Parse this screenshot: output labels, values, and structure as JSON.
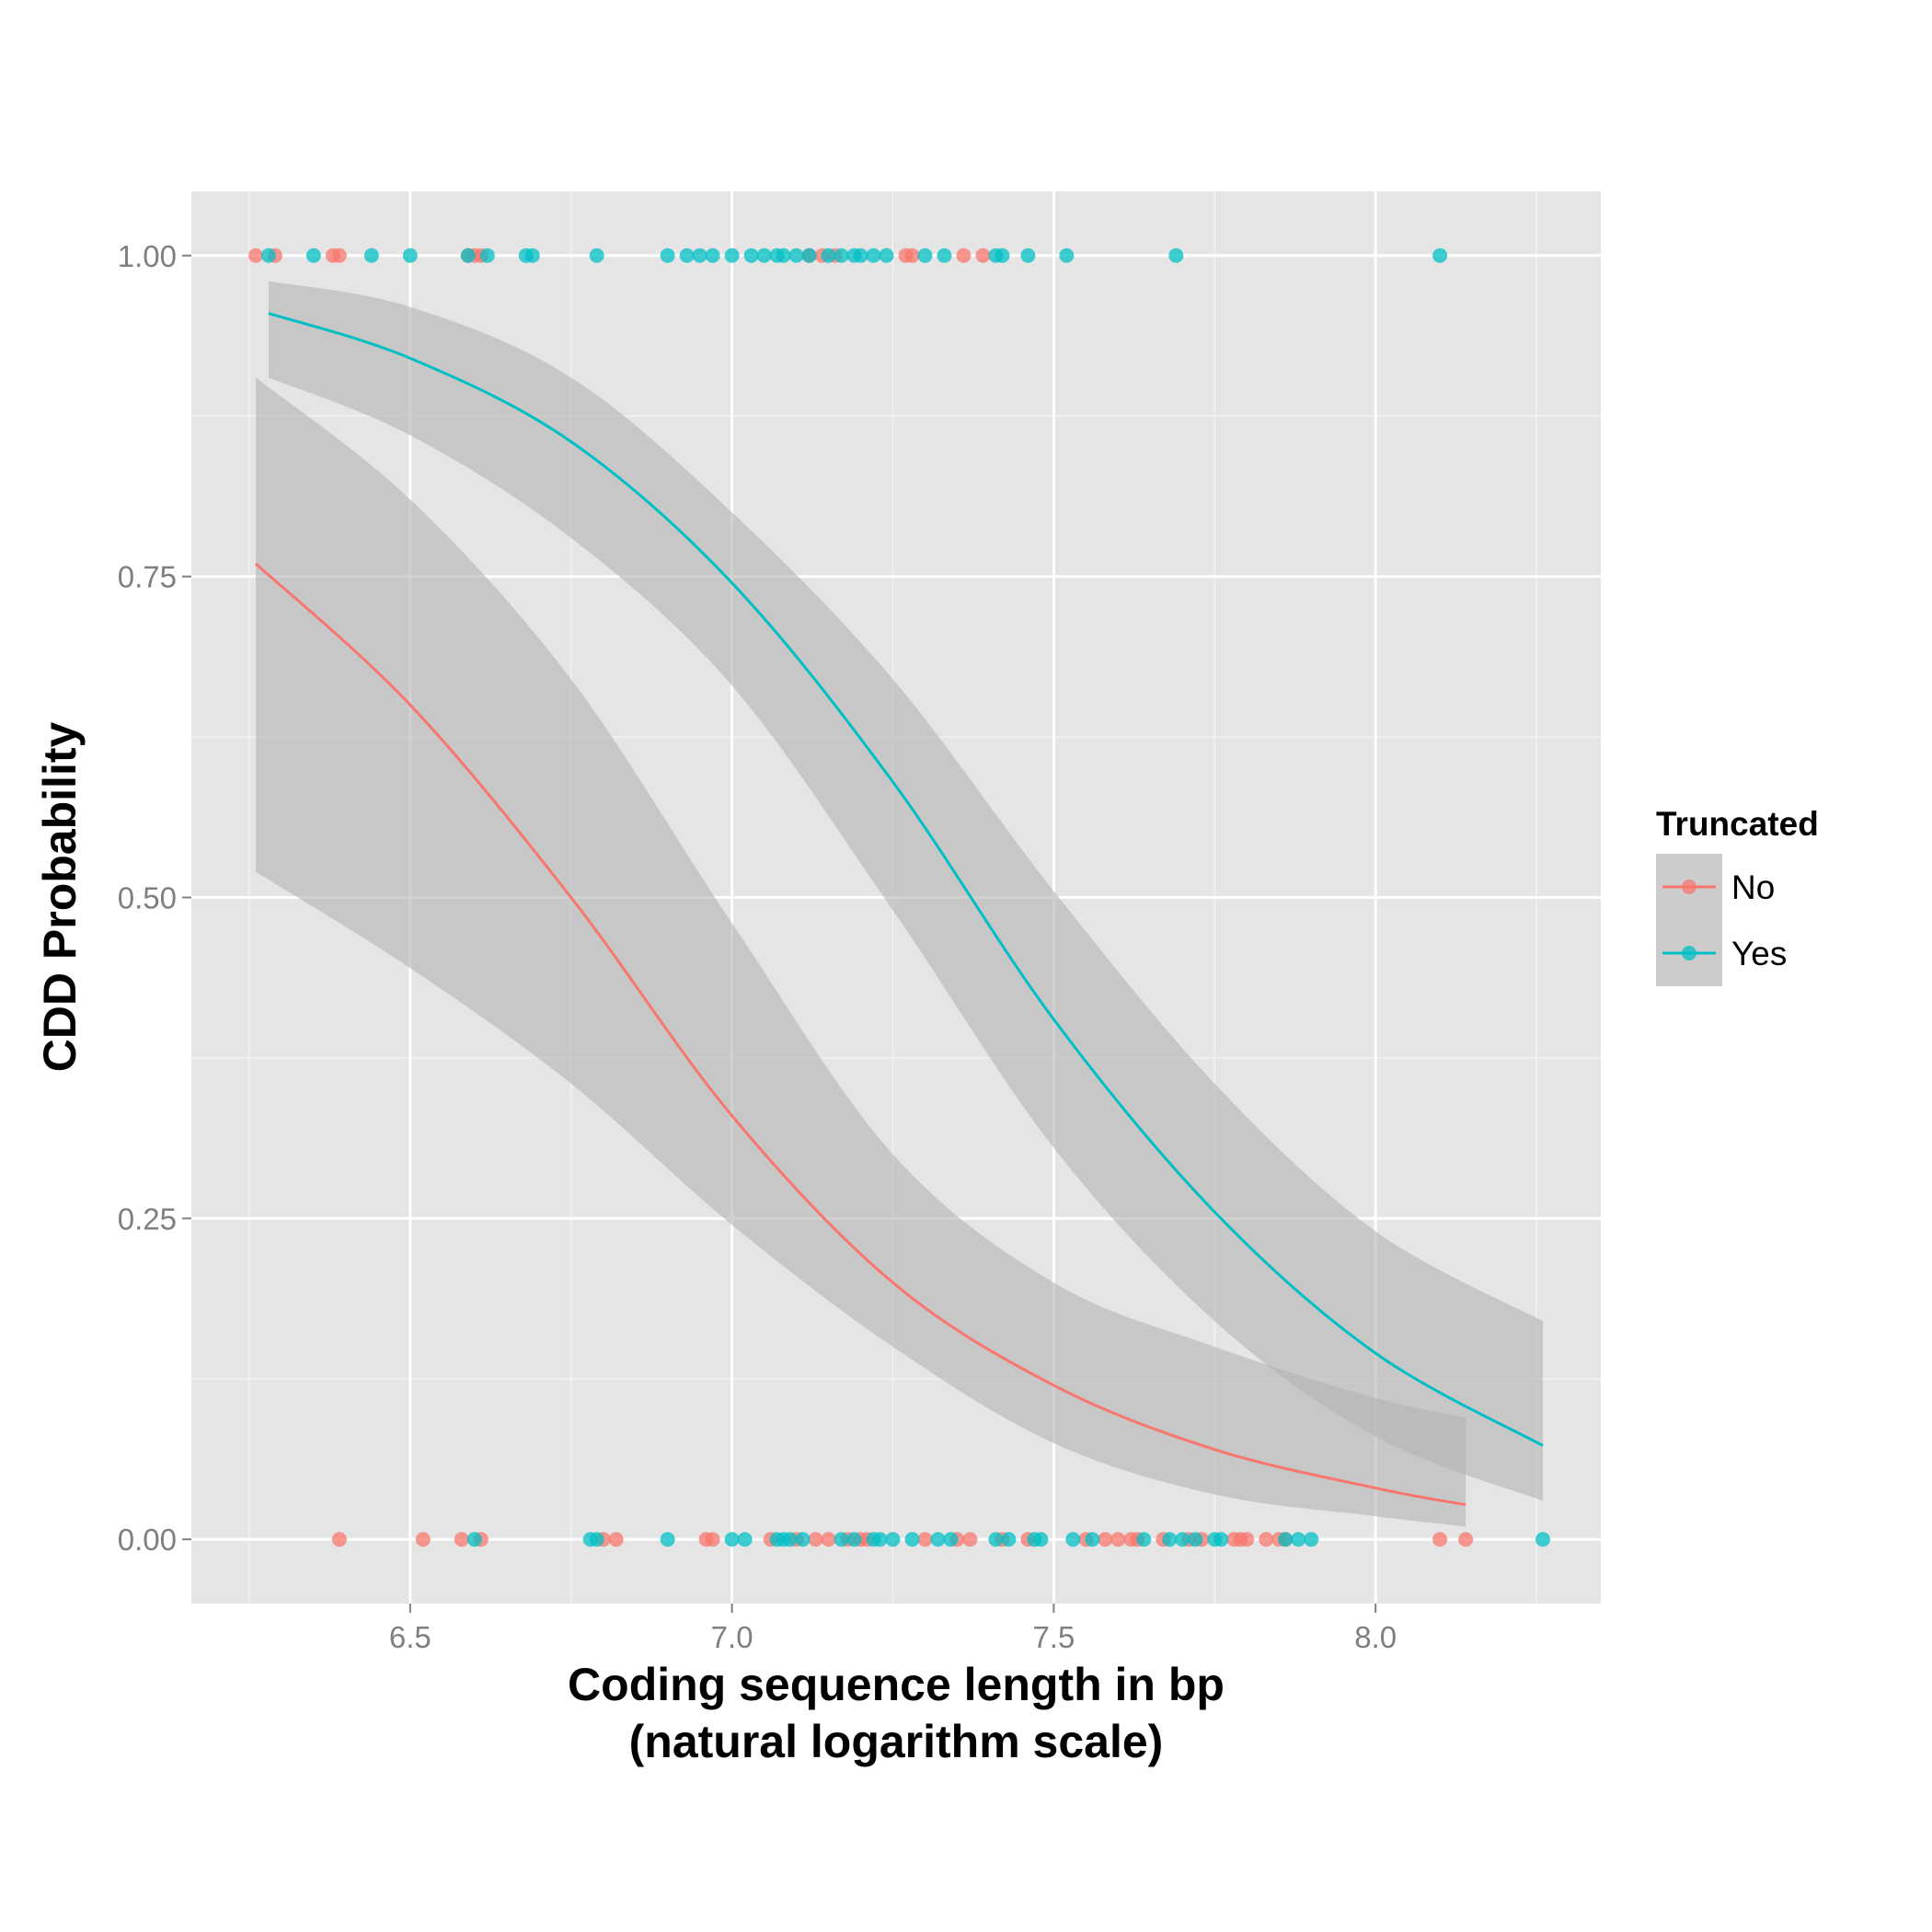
{
  "chart_data": {
    "type": "scatter",
    "xlabel": [
      "Coding sequence length in bp",
      "(natural logarithm scale)"
    ],
    "ylabel": "CDD Probability",
    "xlim": [
      6.16,
      8.35
    ],
    "ylim": [
      -0.05,
      1.05
    ],
    "x_ticks": [
      6.5,
      7.0,
      7.5,
      8.0
    ],
    "x_tick_labels": [
      "6.5",
      "7.0",
      "7.5",
      "8.0"
    ],
    "y_ticks": [
      0,
      0.25,
      0.5,
      0.75,
      1.0
    ],
    "y_tick_labels": [
      "0.00",
      "0.25",
      "0.50",
      "0.75",
      "1.00"
    ],
    "grid": true,
    "legend": {
      "title": "Truncated",
      "position": "right"
    },
    "colors": {
      "No": "#F8766D",
      "Yes": "#00BFC4",
      "ribbon": "#b3b3b3",
      "panel": "#e5e5e5"
    },
    "series": [
      {
        "name": "No",
        "color": "#F8766D",
        "fit": {
          "x": [
            6.26,
            6.5,
            6.75,
            7.0,
            7.25,
            7.5,
            7.75,
            8.0,
            8.14
          ],
          "y": [
            0.76,
            0.65,
            0.5,
            0.33,
            0.2,
            0.12,
            0.07,
            0.04,
            0.027
          ],
          "lower": [
            0.52,
            0.445,
            0.355,
            0.245,
            0.15,
            0.075,
            0.035,
            0.018,
            0.01
          ],
          "upper": [
            0.905,
            0.81,
            0.67,
            0.48,
            0.3,
            0.2,
            0.15,
            0.11,
            0.095
          ]
        },
        "points_y1": [
          6.26,
          6.29,
          6.38,
          6.39,
          6.59,
          6.6,
          6.61,
          7.12,
          7.14,
          7.16,
          7.27,
          7.28,
          7.36,
          7.39
        ],
        "points_y0": [
          6.39,
          6.52,
          6.58,
          6.61,
          6.8,
          6.82,
          6.96,
          6.97,
          7.06,
          7.1,
          7.13,
          7.15,
          7.18,
          7.2,
          7.21,
          7.3,
          7.35,
          7.37,
          7.42,
          7.46,
          7.55,
          7.58,
          7.6,
          7.62,
          7.63,
          7.67,
          7.71,
          7.73,
          7.78,
          7.79,
          7.8,
          7.83,
          7.85,
          7.86,
          8.1,
          8.14
        ]
      },
      {
        "name": "Yes",
        "color": "#00BFC4",
        "fit": {
          "x": [
            6.28,
            6.5,
            6.75,
            7.0,
            7.25,
            7.5,
            7.75,
            8.0,
            8.26
          ],
          "y": [
            0.955,
            0.92,
            0.855,
            0.745,
            0.59,
            0.405,
            0.255,
            0.145,
            0.073
          ],
          "lower": [
            0.905,
            0.86,
            0.78,
            0.665,
            0.49,
            0.305,
            0.17,
            0.08,
            0.03
          ],
          "upper": [
            0.98,
            0.96,
            0.905,
            0.8,
            0.67,
            0.505,
            0.355,
            0.24,
            0.17
          ]
        },
        "points_y1": [
          6.28,
          6.35,
          6.44,
          6.5,
          6.59,
          6.62,
          6.68,
          6.69,
          6.79,
          6.9,
          6.93,
          6.95,
          6.97,
          7.0,
          7.03,
          7.05,
          7.07,
          7.08,
          7.1,
          7.12,
          7.15,
          7.17,
          7.19,
          7.2,
          7.22,
          7.24,
          7.3,
          7.33,
          7.41,
          7.42,
          7.46,
          7.52,
          7.69,
          8.1
        ],
        "points_y0": [
          6.6,
          6.78,
          6.79,
          6.9,
          7.0,
          7.02,
          7.07,
          7.08,
          7.09,
          7.11,
          7.17,
          7.19,
          7.22,
          7.23,
          7.25,
          7.28,
          7.32,
          7.34,
          7.41,
          7.43,
          7.47,
          7.48,
          7.53,
          7.56,
          7.64,
          7.68,
          7.7,
          7.72,
          7.75,
          7.76,
          7.86,
          7.88,
          7.9,
          8.26
        ]
      }
    ]
  }
}
